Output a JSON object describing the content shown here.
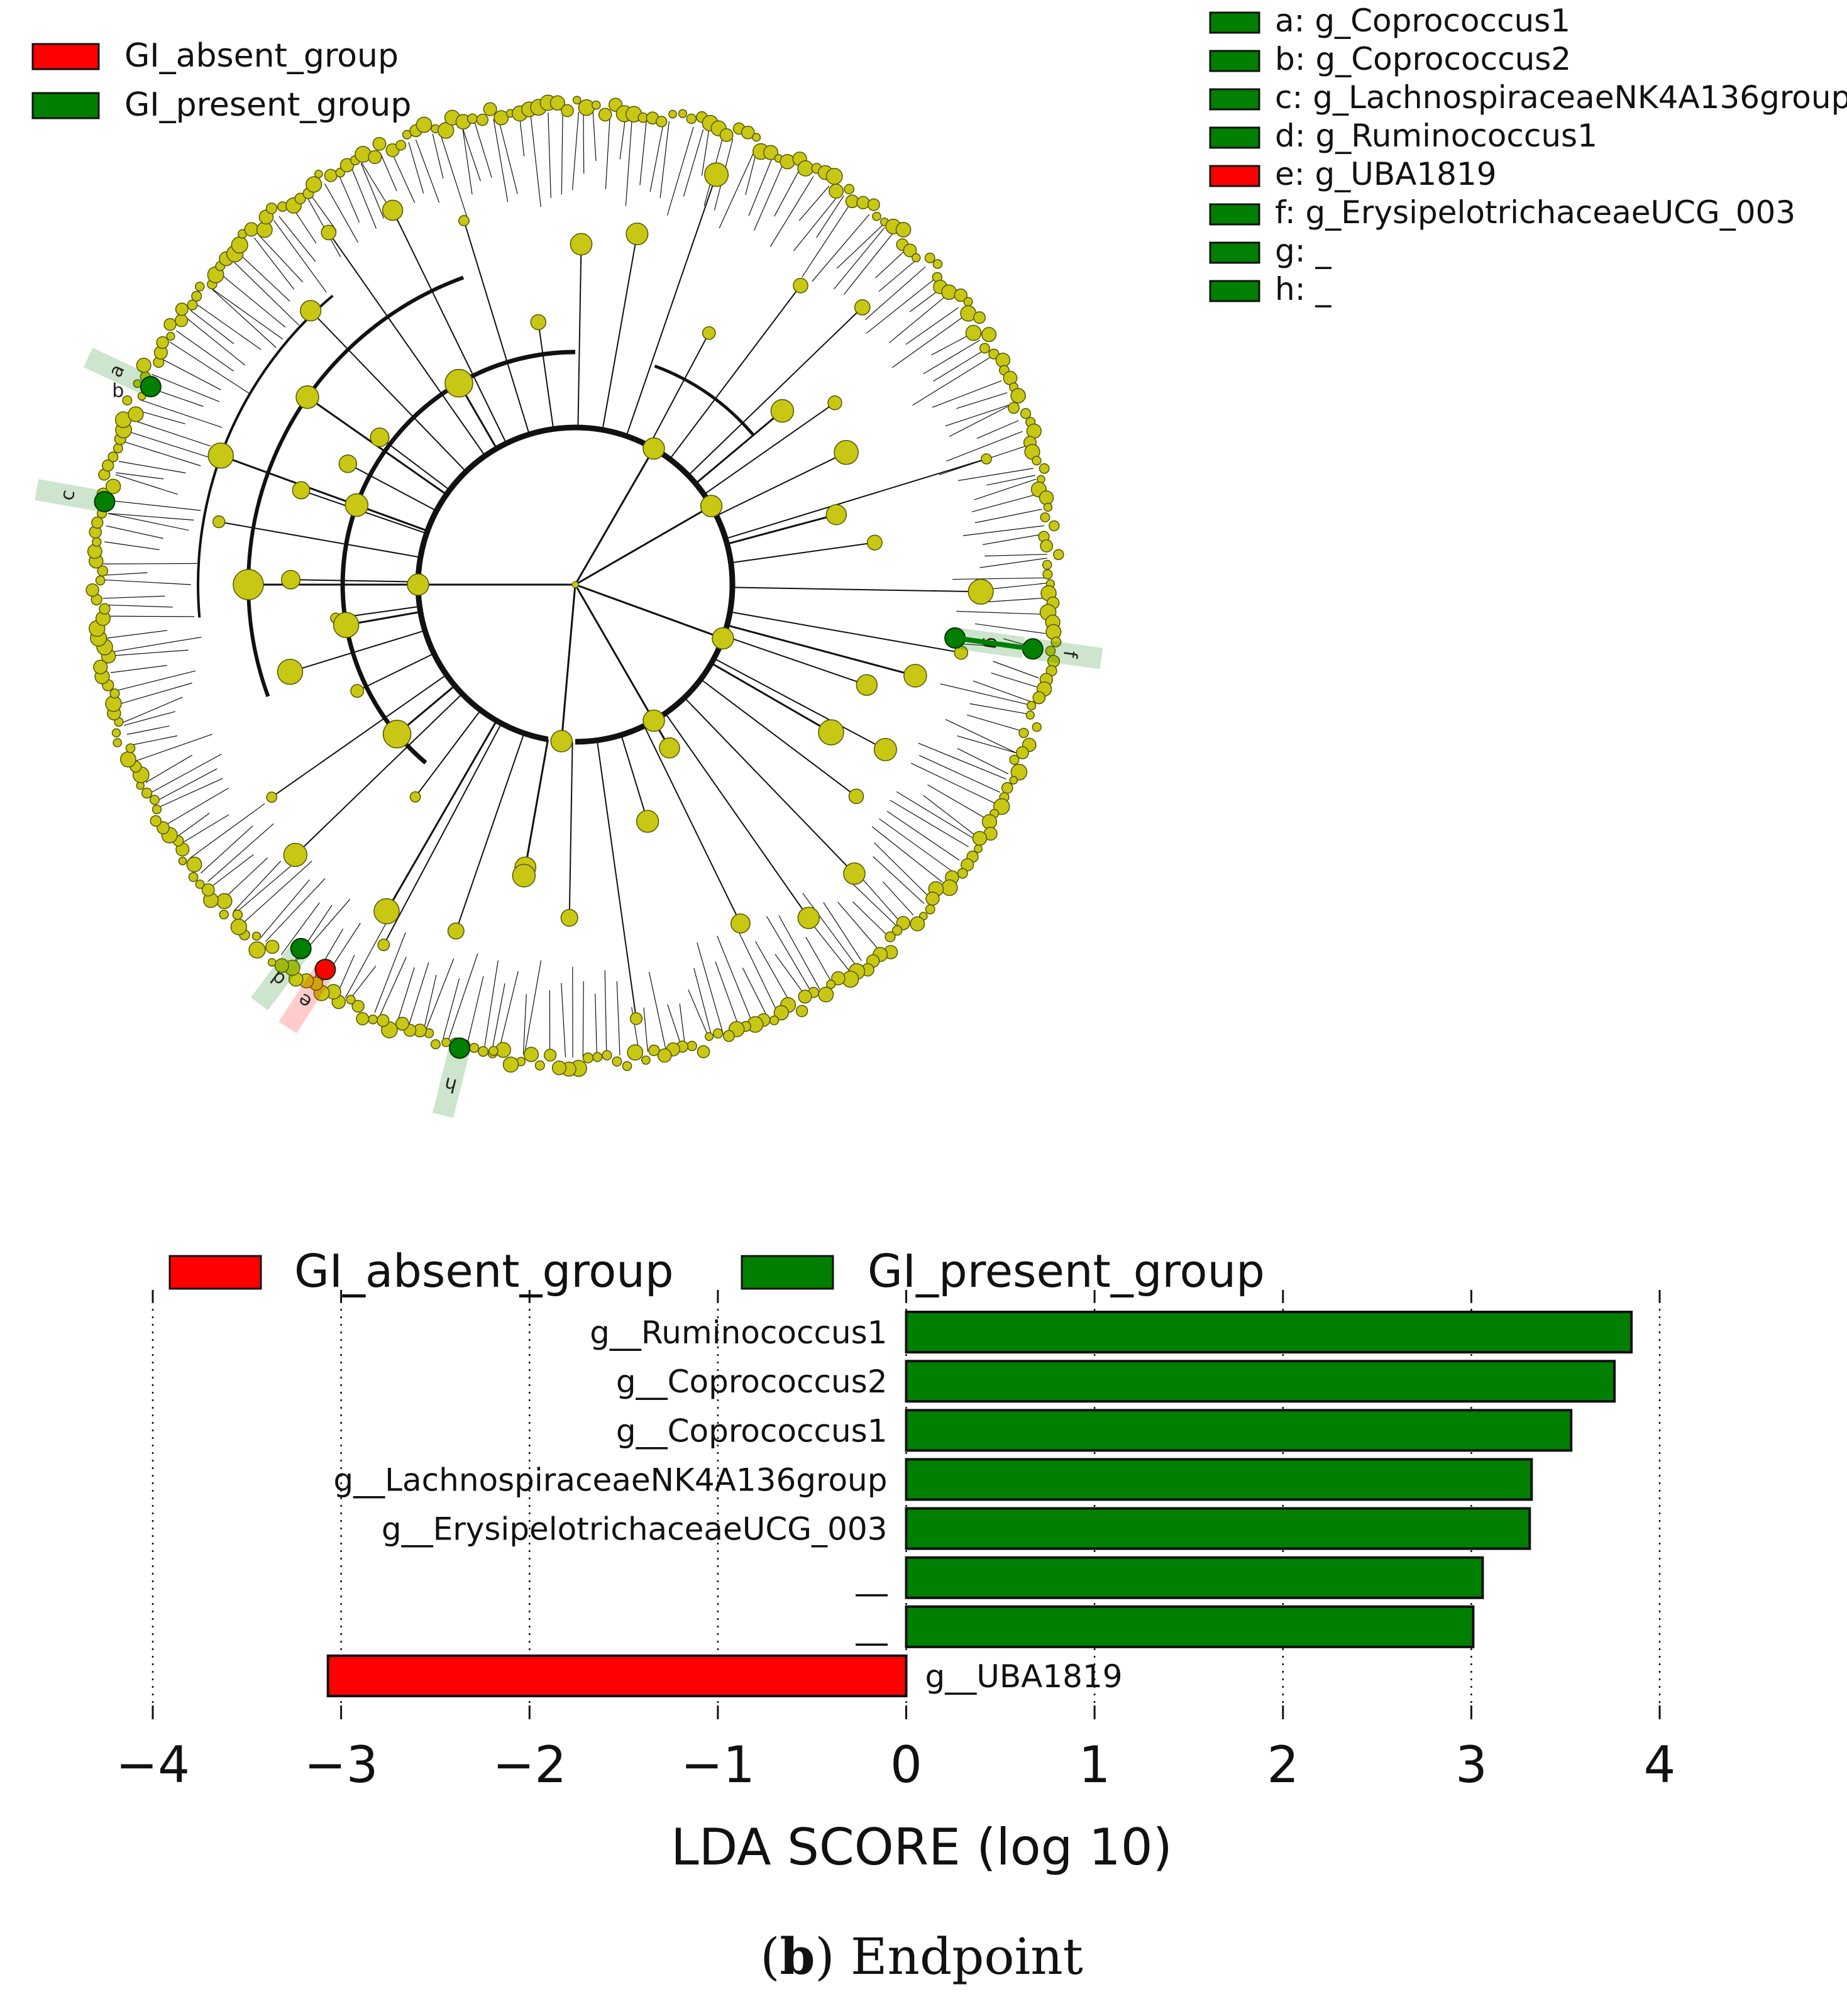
{
  "colors": {
    "absent": "#ff0000",
    "present": "#007f00",
    "node": "#c8c814",
    "edge": "#111111"
  },
  "cladogram": {
    "legend": [
      {
        "label": "GI_absent_group",
        "color": "#ff0000"
      },
      {
        "label": "GI_present_group",
        "color": "#007f00"
      }
    ],
    "key": [
      {
        "label": "a: g_Coprococcus1",
        "color": "#007f00"
      },
      {
        "label": "b: g_Coprococcus2",
        "color": "#007f00"
      },
      {
        "label": "c: g_LachnospiraceaeNK4A136group",
        "color": "#007f00"
      },
      {
        "label": "d: g_Ruminococcus1",
        "color": "#007f00"
      },
      {
        "label": "e: g_UBA1819",
        "color": "#ff0000"
      },
      {
        "label": "f: g_ErysipelotrichaceaeUCG_003",
        "color": "#007f00"
      },
      {
        "label": "g: _",
        "color": "#007f00"
      },
      {
        "label": "h: _",
        "color": "#007f00"
      }
    ],
    "node_tags": [
      "a",
      "b",
      "c",
      "d",
      "e",
      "f",
      "g",
      "h"
    ]
  },
  "chart_data": {
    "type": "bar",
    "orientation": "horizontal",
    "legend": [
      {
        "label": "GI_absent_group",
        "color": "#ff0000"
      },
      {
        "label": "GI_present_group",
        "color": "#007f00"
      }
    ],
    "categories": [
      "g__Ruminococcus1",
      "g__Coprococcus2",
      "g__Coprococcus1",
      "g__LachnospiraceaeNK4A136group",
      "g__ErysipelotrichaceaeUCG_003",
      "__",
      "__",
      "g__UBA1819"
    ],
    "values": [
      3.85,
      3.76,
      3.53,
      3.32,
      3.31,
      3.06,
      3.01,
      -3.07
    ],
    "groups": [
      "GI_present_group",
      "GI_present_group",
      "GI_present_group",
      "GI_present_group",
      "GI_present_group",
      "GI_present_group",
      "GI_present_group",
      "GI_absent_group"
    ],
    "xlabel": "LDA SCORE (log 10)",
    "xlim": [
      -4,
      4
    ],
    "xticks": [
      -4,
      -3,
      -2,
      -1,
      0,
      1,
      2,
      3,
      4
    ],
    "xtick_labels": [
      "−4",
      "−3",
      "−2",
      "−1",
      "0",
      "1",
      "2",
      "3",
      "4"
    ],
    "grid": "vertical dotted"
  },
  "caption": {
    "prefix": "(",
    "bold": "b",
    "suffix": ") Endpoint"
  }
}
